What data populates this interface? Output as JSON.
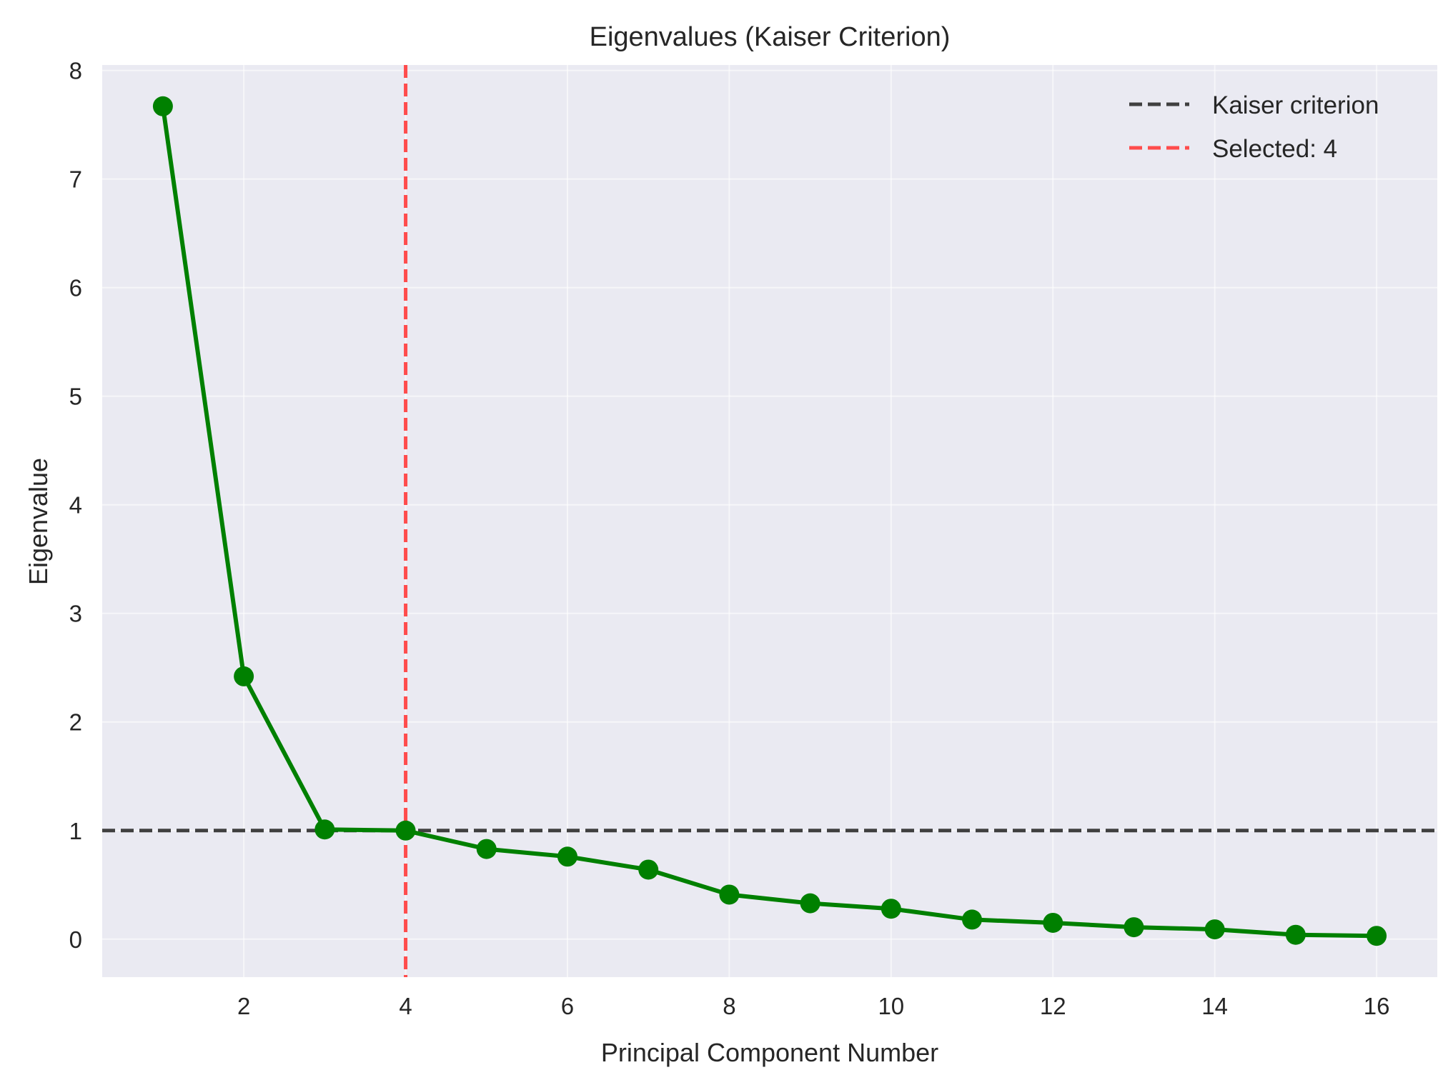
{
  "chart_data": {
    "type": "line",
    "title": "Eigenvalues (Kaiser Criterion)",
    "xlabel": "Principal Component Number",
    "ylabel": "Eigenvalue",
    "xlim": [
      0.25,
      16.75
    ],
    "ylim": [
      -0.35,
      8.05
    ],
    "xticks": [
      2,
      4,
      6,
      8,
      10,
      12,
      14,
      16
    ],
    "yticks": [
      0,
      1,
      2,
      3,
      4,
      5,
      6,
      7,
      8
    ],
    "grid": true,
    "series": [
      {
        "x": [
          1,
          2,
          3,
          4,
          5,
          6,
          7,
          8,
          9,
          10,
          11,
          12,
          13,
          14,
          15,
          16
        ],
        "values": [
          7.67,
          2.42,
          1.01,
          1.0,
          0.83,
          0.76,
          0.64,
          0.41,
          0.33,
          0.28,
          0.18,
          0.15,
          0.11,
          0.09,
          0.04,
          0.03
        ],
        "color": "#008000"
      }
    ],
    "reference_lines": [
      {
        "orientation": "horizontal",
        "value": 1,
        "label": "Kaiser criterion",
        "color": "#404040",
        "style": "dashed"
      },
      {
        "orientation": "vertical",
        "value": 4,
        "label": "Selected: 4",
        "color": "#ff4c4c",
        "style": "dashed"
      }
    ],
    "legend": {
      "placement": "top-right"
    },
    "colors": {
      "plot_background": "#eaeaf2",
      "grid": "#ffffff",
      "line": "#008000"
    }
  }
}
